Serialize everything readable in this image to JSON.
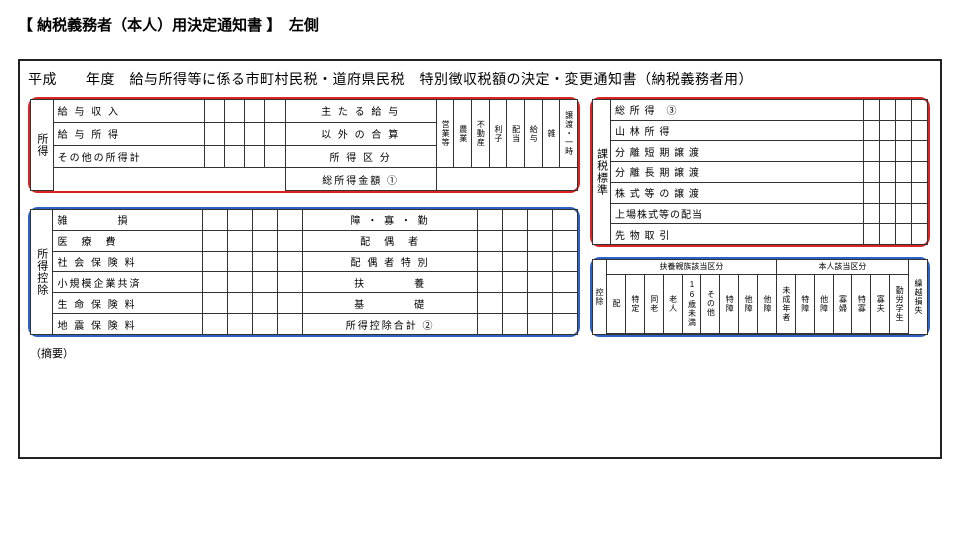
{
  "page_title": "【 納税義務者（本人）用決定通知書 】　左側",
  "header": "平成　　年度　給与所得等に係る市町村民税・道府県民税　特別徴収税額の決定・変更通知書（納税義務者用）",
  "highlight_colors": {
    "red": "#d22",
    "blue": "#2a62c7"
  },
  "secA": {
    "side_label": "所得",
    "rows_left": [
      "給 与 収 入",
      "給 与 所 得",
      "その他の所得計"
    ],
    "rows_right": [
      "主 た る 給 与",
      "以 外 の 合 算",
      "所  得  区  分"
    ],
    "total_row": "総所得金額 ①",
    "mini_cols": [
      "営業等",
      "農業",
      "不動産",
      "利子",
      "配当",
      "給与",
      "雑",
      "譲渡・一時"
    ]
  },
  "secB": {
    "side_label": "所得控除",
    "rows_left": [
      "雑　　　　損",
      "医　療　費",
      "社 会 保 険 料",
      "小規模企業共済",
      "生 命 保 険 料",
      "地 震 保 険 料"
    ],
    "rows_right": [
      "障 ・ 寡 ・ 勤",
      "配　偶　者",
      "配 偶 者 特 別",
      "扶　　　　養",
      "基　　　　礎",
      "所得控除合計 ②"
    ]
  },
  "secC": {
    "side_label": "課税標準",
    "rows": [
      "総 所 得　③",
      "山 林 所 得",
      "分 離 短 期 譲 渡",
      "分 離 長 期 譲 渡",
      "株 式 等 の 譲 渡",
      "上場株式等の配当",
      "先 物 取 引"
    ]
  },
  "secD": {
    "side_label": "控除",
    "group1": "扶養親族該当区分",
    "group2": "本人該当区分",
    "extra": "繰越損失",
    "cols1": [
      "配",
      "特定",
      "同老",
      "老人",
      "16歳未満",
      "その他",
      "特障",
      "他障",
      "他障"
    ],
    "cols2": [
      "未成年者",
      "特障",
      "他障",
      "寡婦",
      "特寡",
      "寡夫",
      "勤労学生"
    ]
  },
  "tenyo": "（摘要）"
}
